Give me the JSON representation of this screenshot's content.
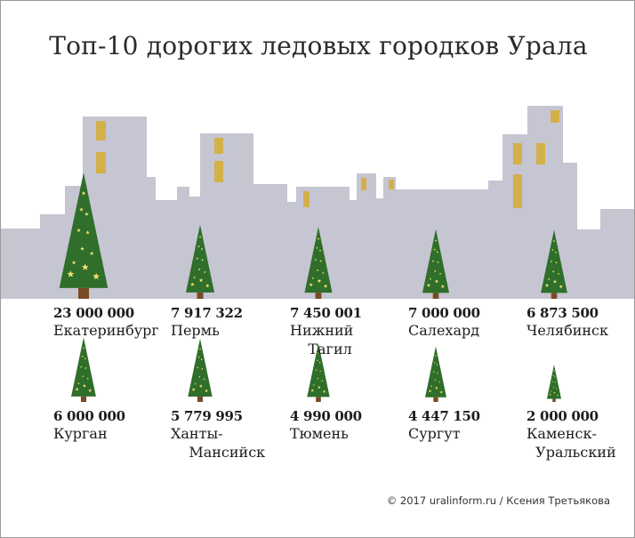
{
  "title": "Топ-10 дорогих ледовых городков Урала",
  "credit": "© 2017 uralinform.ru / Ксения Третьякова",
  "colors": {
    "tree": "#2f6e2b",
    "trunk": "#7a4a24",
    "star": "#f1e06a",
    "window": "#d4b04a",
    "sky_top": "#33365a",
    "sky_bottom": "#c4c4d0"
  },
  "chart_data": {
    "type": "bar",
    "marks": "tree-icons",
    "categories": [
      "Екатеринбург",
      "Пермь",
      "Нижний Тагил",
      "Салехард",
      "Челябинск",
      "Курган",
      "Ханты-Мансийск",
      "Тюмень",
      "Сургут",
      "Каменск-Уральский"
    ],
    "values": [
      23000000,
      7917322,
      7450001,
      7000000,
      6873500,
      6000000,
      5779995,
      4990000,
      4447150,
      2000000
    ],
    "value_labels": [
      "23 000 000",
      "7 917 322",
      "7 450 001",
      "7 000 000",
      "6 873 500",
      "6 000 000",
      "5 779 995",
      "4 990 000",
      "4 447 150",
      "2 000 000"
    ],
    "city_labels": [
      "Екатеринбург",
      "Пермь",
      "Нижний\n    Тагил",
      "Салехард",
      "Челябинск",
      "Курган",
      "Ханты-\n    Мансийск",
      "Тюмень",
      "Сургут",
      "Каменск-\n  Уральский"
    ]
  }
}
